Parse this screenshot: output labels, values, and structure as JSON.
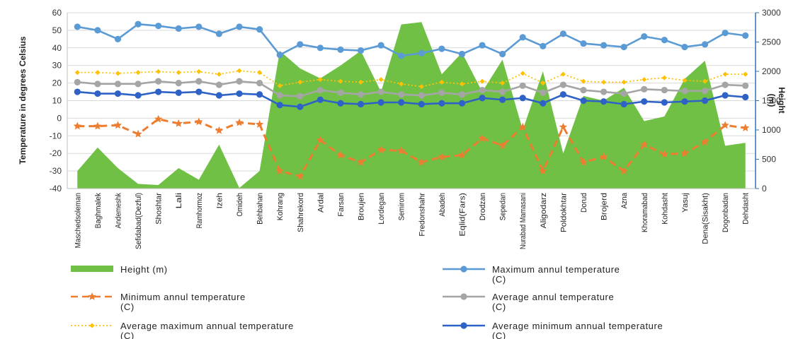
{
  "chart_data": {
    "type": "line",
    "ylabel": "Temperature in degrees Celsius",
    "y2label": [
      "Height",
      "(m)"
    ],
    "ylim": [
      -40,
      60
    ],
    "y2lim": [
      0,
      3000
    ],
    "yticks": [
      -40,
      -30,
      -20,
      -10,
      0,
      10,
      20,
      30,
      40,
      50,
      60
    ],
    "y2ticks": [
      0,
      500,
      1000,
      1500,
      2000,
      2500,
      3000
    ],
    "y_tick_labels": [
      "-40",
      "-30",
      "-20",
      "-10",
      "0",
      "10",
      "20",
      "30",
      "40",
      "50",
      "60"
    ],
    "y2_tick_labels": [
      "0",
      "500",
      "1000",
      "1500",
      "2000",
      "2500",
      "3000"
    ],
    "grid": true,
    "legend_position": "bottom",
    "categories": [
      "Maschedsoleman",
      "Baghmalek",
      "Andemeshk",
      "Sefidabad(Dezful)",
      "Shoshtar",
      "Lali",
      "Ramhormoz",
      "Izeh",
      "Omideh",
      "Behbahan",
      "Kohrang",
      "Shahrekord",
      "Ardal",
      "Farsan",
      "Broujen",
      "Lordegan",
      "Semirom",
      "Fredonshahr",
      "Abadeh",
      "Eqlid(Fars)",
      "Drodzan",
      "Sepedan",
      "Nurabad Mamasani",
      "Aligodarz",
      "Poldokhtar",
      "Dorud",
      "Brojerd",
      "Azna",
      "Khoramabad",
      "Kohdasht",
      "Yasuj",
      "Dena(Sisakht)",
      "Dogonbadan",
      "Dehdasht"
    ],
    "series": [
      {
        "name": "Height (m)",
        "kind": "area",
        "axis": "right",
        "color": "#70c045",
        "values": [
          300,
          700,
          350,
          80,
          60,
          350,
          150,
          750,
          10,
          300,
          2350,
          2050,
          1880,
          2100,
          2350,
          1650,
          2800,
          2840,
          1950,
          2320,
          1650,
          2200,
          1000,
          2000,
          600,
          1580,
          1500,
          1720,
          1150,
          1230,
          1870,
          2180,
          730,
          780
        ]
      },
      {
        "name": "Maximum annul temperature (C)",
        "kind": "line",
        "axis": "left",
        "color": "#5b9bd5",
        "marker": "circle",
        "values": [
          52,
          50,
          45,
          53.5,
          52.5,
          51,
          52,
          48,
          52,
          50.5,
          36,
          42,
          40,
          39,
          38.5,
          41.5,
          35.5,
          37,
          39.5,
          36.5,
          41.5,
          36.5,
          46,
          41,
          48,
          42.5,
          41.5,
          40.5,
          46.5,
          44.5,
          40.5,
          42,
          48.5,
          47
        ]
      },
      {
        "name": "Minimum annul temperature (C)",
        "kind": "line",
        "axis": "left",
        "color": "#ed7d31",
        "marker": "star",
        "dash": "dashed",
        "values": [
          -4.5,
          -4.5,
          -4,
          -9,
          -0.5,
          -3,
          -2,
          -7,
          -2.5,
          -3.5,
          -30,
          -33,
          -12.5,
          -21,
          -25,
          -18,
          -18.5,
          -25,
          -22,
          -21,
          -11.5,
          -15.5,
          -5,
          -30,
          -5,
          -25,
          -22,
          -30,
          -15,
          -20.5,
          -20,
          -13.5,
          -4,
          -5.5
        ]
      },
      {
        "name": "Average  annul temperature (C)",
        "kind": "line",
        "axis": "left",
        "color": "#a5a5a5",
        "marker": "circle",
        "values": [
          20.5,
          19.5,
          19.5,
          19.5,
          21,
          20,
          21,
          19,
          21,
          20,
          13,
          12.5,
          16,
          14.5,
          13.5,
          15,
          13.5,
          13,
          14.5,
          13.5,
          16,
          15,
          18.5,
          14.5,
          19,
          16,
          15,
          14,
          16.5,
          16,
          15.5,
          15.5,
          19,
          18.5
        ]
      },
      {
        "name": "Average maximum annual temperature (C)",
        "kind": "line",
        "axis": "left",
        "color": "#ffc000",
        "marker": "diamond",
        "dash": "dotted",
        "values": [
          26,
          26,
          25.5,
          26,
          26.5,
          26,
          26.5,
          25,
          27,
          26,
          18.5,
          20.5,
          22,
          21,
          20.5,
          22,
          19.5,
          18,
          20.5,
          19.5,
          21,
          20,
          25.5,
          20,
          25,
          21,
          20.5,
          20.5,
          22,
          23,
          21.5,
          21,
          25,
          25
        ]
      },
      {
        "name": "Average minimum annual temperature (C)",
        "kind": "line",
        "axis": "left",
        "color": "#2e62c6",
        "marker": "circle",
        "values": [
          15,
          14,
          14,
          13,
          15,
          14.5,
          15,
          13,
          14,
          13.5,
          7.5,
          6.5,
          10.5,
          8.5,
          8,
          9,
          9,
          8,
          8.5,
          8.5,
          11.5,
          10.5,
          11.5,
          8.5,
          13.5,
          10,
          9.5,
          8,
          9.5,
          9,
          9.5,
          10,
          13,
          12
        ]
      }
    ]
  }
}
